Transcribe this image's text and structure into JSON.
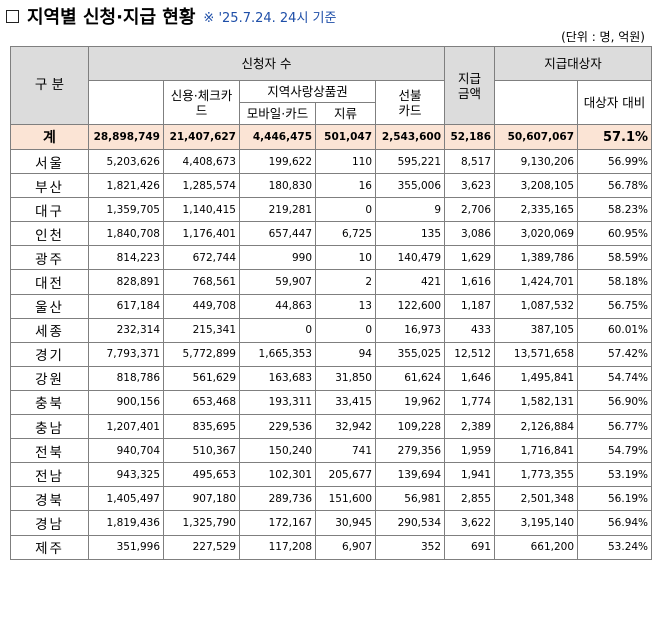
{
  "title": {
    "main": "지역별 신청·지급 현황",
    "note": "※ '25.7.24. 24시 기준"
  },
  "unit": "(단위 : 명, 억원)",
  "headers": {
    "gubun": "구 분",
    "applicants": "신청자 수",
    "credit_check": "신용·체크카드",
    "local_voucher": "지역사랑상품권",
    "mobile_card": "모바일·카드",
    "paper": "지류",
    "prepaid": "선불카드",
    "paid_amount": "지급금액",
    "targets": "지급대상자",
    "target_ratio": "대상자 대비"
  },
  "total": {
    "region": "계",
    "applicants": "28,898,749",
    "credit_check": "21,407,627",
    "mobile_card": "4,446,475",
    "paper": "501,047",
    "prepaid": "2,543,600",
    "amount": "52,186",
    "targets": "50,607,067",
    "rate": "57.1%"
  },
  "rows": [
    {
      "region": "서울",
      "applicants": "5,203,626",
      "credit_check": "4,408,673",
      "mobile_card": "199,622",
      "paper": "110",
      "prepaid": "595,221",
      "amount": "8,517",
      "targets": "9,130,206",
      "rate": "56.99%"
    },
    {
      "region": "부산",
      "applicants": "1,821,426",
      "credit_check": "1,285,574",
      "mobile_card": "180,830",
      "paper": "16",
      "prepaid": "355,006",
      "amount": "3,623",
      "targets": "3,208,105",
      "rate": "56.78%"
    },
    {
      "region": "대구",
      "applicants": "1,359,705",
      "credit_check": "1,140,415",
      "mobile_card": "219,281",
      "paper": "0",
      "prepaid": "9",
      "amount": "2,706",
      "targets": "2,335,165",
      "rate": "58.23%"
    },
    {
      "region": "인천",
      "applicants": "1,840,708",
      "credit_check": "1,176,401",
      "mobile_card": "657,447",
      "paper": "6,725",
      "prepaid": "135",
      "amount": "3,086",
      "targets": "3,020,069",
      "rate": "60.95%"
    },
    {
      "region": "광주",
      "applicants": "814,223",
      "credit_check": "672,744",
      "mobile_card": "990",
      "paper": "10",
      "prepaid": "140,479",
      "amount": "1,629",
      "targets": "1,389,786",
      "rate": "58.59%"
    },
    {
      "region": "대전",
      "applicants": "828,891",
      "credit_check": "768,561",
      "mobile_card": "59,907",
      "paper": "2",
      "prepaid": "421",
      "amount": "1,616",
      "targets": "1,424,701",
      "rate": "58.18%"
    },
    {
      "region": "울산",
      "applicants": "617,184",
      "credit_check": "449,708",
      "mobile_card": "44,863",
      "paper": "13",
      "prepaid": "122,600",
      "amount": "1,187",
      "targets": "1,087,532",
      "rate": "56.75%"
    },
    {
      "region": "세종",
      "applicants": "232,314",
      "credit_check": "215,341",
      "mobile_card": "0",
      "paper": "0",
      "prepaid": "16,973",
      "amount": "433",
      "targets": "387,105",
      "rate": "60.01%"
    },
    {
      "region": "경기",
      "applicants": "7,793,371",
      "credit_check": "5,772,899",
      "mobile_card": "1,665,353",
      "paper": "94",
      "prepaid": "355,025",
      "amount": "12,512",
      "targets": "13,571,658",
      "rate": "57.42%"
    },
    {
      "region": "강원",
      "applicants": "818,786",
      "credit_check": "561,629",
      "mobile_card": "163,683",
      "paper": "31,850",
      "prepaid": "61,624",
      "amount": "1,646",
      "targets": "1,495,841",
      "rate": "54.74%"
    },
    {
      "region": "충북",
      "applicants": "900,156",
      "credit_check": "653,468",
      "mobile_card": "193,311",
      "paper": "33,415",
      "prepaid": "19,962",
      "amount": "1,774",
      "targets": "1,582,131",
      "rate": "56.90%"
    },
    {
      "region": "충남",
      "applicants": "1,207,401",
      "credit_check": "835,695",
      "mobile_card": "229,536",
      "paper": "32,942",
      "prepaid": "109,228",
      "amount": "2,389",
      "targets": "2,126,884",
      "rate": "56.77%"
    },
    {
      "region": "전북",
      "applicants": "940,704",
      "credit_check": "510,367",
      "mobile_card": "150,240",
      "paper": "741",
      "prepaid": "279,356",
      "amount": "1,959",
      "targets": "1,716,841",
      "rate": "54.79%"
    },
    {
      "region": "전남",
      "applicants": "943,325",
      "credit_check": "495,653",
      "mobile_card": "102,301",
      "paper": "205,677",
      "prepaid": "139,694",
      "amount": "1,941",
      "targets": "1,773,355",
      "rate": "53.19%"
    },
    {
      "region": "경북",
      "applicants": "1,405,497",
      "credit_check": "907,180",
      "mobile_card": "289,736",
      "paper": "151,600",
      "prepaid": "56,981",
      "amount": "2,855",
      "targets": "2,501,348",
      "rate": "56.19%"
    },
    {
      "region": "경남",
      "applicants": "1,819,436",
      "credit_check": "1,325,790",
      "mobile_card": "172,167",
      "paper": "30,945",
      "prepaid": "290,534",
      "amount": "3,622",
      "targets": "3,195,140",
      "rate": "56.94%"
    },
    {
      "region": "제주",
      "applicants": "351,996",
      "credit_check": "227,529",
      "mobile_card": "117,208",
      "paper": "6,907",
      "prepaid": "352",
      "amount": "691",
      "targets": "661,200",
      "rate": "53.24%"
    }
  ]
}
